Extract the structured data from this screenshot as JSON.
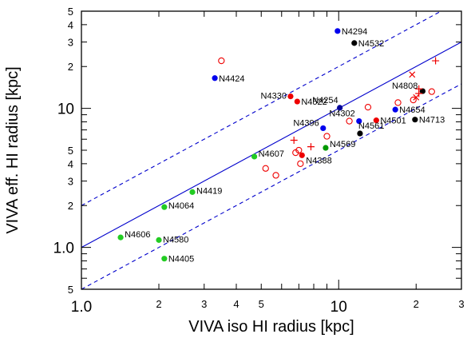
{
  "chart_data": {
    "type": "scatter",
    "xscale": "log",
    "yscale": "log",
    "xlim": [
      1.0,
      30.0
    ],
    "ylim": [
      0.5,
      50.0
    ],
    "xlabel": "VIVA iso HI radius [kpc]",
    "ylabel": "VIVA eff. HI radius [kpc]",
    "grid": false,
    "x_ticklabels": [
      {
        "v": 1.0,
        "t": "1.0",
        "major": true
      },
      {
        "v": 2,
        "t": "2",
        "major": false
      },
      {
        "v": 3,
        "t": "3",
        "major": false
      },
      {
        "v": 4,
        "t": "4",
        "major": false
      },
      {
        "v": 5,
        "t": "5",
        "major": false
      },
      {
        "v": 10,
        "t": "10",
        "major": true
      },
      {
        "v": 20,
        "t": "2",
        "major": false
      },
      {
        "v": 30,
        "t": "3",
        "major": false
      }
    ],
    "y_ticklabels": [
      {
        "v": 0.5,
        "t": "5"
      },
      {
        "v": 1.0,
        "t": "1.0"
      },
      {
        "v": 2,
        "t": "2"
      },
      {
        "v": 3,
        "t": "3"
      },
      {
        "v": 4,
        "t": "4"
      },
      {
        "v": 5,
        "t": "5"
      },
      {
        "v": 10,
        "t": "10"
      },
      {
        "v": 20,
        "t": "2"
      },
      {
        "v": 30,
        "t": "3"
      },
      {
        "v": 40,
        "t": "4"
      },
      {
        "v": 50,
        "t": "5"
      }
    ],
    "lines": [
      {
        "kind": "solid",
        "factor": 1.0,
        "color": "#0000cc"
      },
      {
        "kind": "dashed",
        "factor": 2.0,
        "color": "#0000cc"
      },
      {
        "kind": "dashed",
        "factor": 0.5,
        "color": "#0000cc"
      }
    ],
    "points": [
      {
        "name": "N4294",
        "x": 9.9,
        "y": 36.0,
        "marker": "filled",
        "color": "#0000ee"
      },
      {
        "name": "N4532",
        "x": 11.5,
        "y": 29.5,
        "marker": "filled",
        "color": "#000000"
      },
      {
        "name": "N4424",
        "x": 3.3,
        "y": 16.5,
        "marker": "filled",
        "color": "#0000ee"
      },
      {
        "name": "N4330",
        "x": 6.5,
        "y": 12.2,
        "marker": "filled",
        "color": "#ee0000"
      },
      {
        "name": "N4522",
        "x": 6.9,
        "y": 11.2,
        "marker": "filled",
        "color": "#ee0000"
      },
      {
        "name": "N4808",
        "x": 21.2,
        "y": 13.3,
        "marker": "filled",
        "color": "#000000"
      },
      {
        "name": "N4254",
        "x": 10.1,
        "y": 10.1,
        "marker": "filled",
        "color": "#000099"
      },
      {
        "name": "N4654",
        "x": 16.6,
        "y": 9.8,
        "marker": "filled",
        "color": "#0000ee"
      },
      {
        "name": "N4302",
        "x": 12.0,
        "y": 8.1,
        "marker": "filled",
        "color": "#0000ee"
      },
      {
        "name": "N4501",
        "x": 14.0,
        "y": 8.2,
        "marker": "filled",
        "color": "#ee0000"
      },
      {
        "name": "N4713",
        "x": 19.8,
        "y": 8.3,
        "marker": "filled",
        "color": "#000000"
      },
      {
        "name": "N4396",
        "x": 8.7,
        "y": 7.2,
        "marker": "filled",
        "color": "#0000ee"
      },
      {
        "name": "N4561",
        "x": 12.1,
        "y": 6.6,
        "marker": "filled",
        "color": "#000000"
      },
      {
        "name": "N4569",
        "x": 8.9,
        "y": 5.2,
        "marker": "filled",
        "color": "#009900"
      },
      {
        "name": "N4388",
        "x": 7.2,
        "y": 4.6,
        "marker": "filled",
        "color": "#ee0000"
      },
      {
        "name": "N4607",
        "x": 4.7,
        "y": 4.5,
        "marker": "filled",
        "color": "#22cc22"
      },
      {
        "name": "N4419",
        "x": 2.7,
        "y": 2.5,
        "marker": "filled",
        "color": "#22cc22"
      },
      {
        "name": "N4064",
        "x": 2.1,
        "y": 1.95,
        "marker": "filled",
        "color": "#22cc22"
      },
      {
        "name": "N4606",
        "x": 1.42,
        "y": 1.18,
        "marker": "filled",
        "color": "#22cc22"
      },
      {
        "name": "N4580",
        "x": 2.0,
        "y": 1.13,
        "marker": "filled",
        "color": "#22cc22"
      },
      {
        "name": "N4405",
        "x": 2.1,
        "y": 0.83,
        "marker": "filled",
        "color": "#22cc22"
      },
      {
        "name": "",
        "x": 3.5,
        "y": 22.0,
        "marker": "open",
        "color": "#ee0000"
      },
      {
        "name": "",
        "x": 5.2,
        "y": 3.7,
        "marker": "open",
        "color": "#ee0000"
      },
      {
        "name": "",
        "x": 5.7,
        "y": 3.3,
        "marker": "open",
        "color": "#ee0000"
      },
      {
        "name": "",
        "x": 6.8,
        "y": 4.8,
        "marker": "open",
        "color": "#ee0000"
      },
      {
        "name": "",
        "x": 7.0,
        "y": 5.0,
        "marker": "open",
        "color": "#ee0000"
      },
      {
        "name": "",
        "x": 7.1,
        "y": 4.0,
        "marker": "open",
        "color": "#ee0000"
      },
      {
        "name": "",
        "x": 9.0,
        "y": 6.3,
        "marker": "open",
        "color": "#ee0000"
      },
      {
        "name": "",
        "x": 11.0,
        "y": 8.1,
        "marker": "open",
        "color": "#ee0000"
      },
      {
        "name": "",
        "x": 13.0,
        "y": 10.2,
        "marker": "open",
        "color": "#ee0000"
      },
      {
        "name": "",
        "x": 17.0,
        "y": 11.0,
        "marker": "open",
        "color": "#ee0000"
      },
      {
        "name": "",
        "x": 19.5,
        "y": 11.5,
        "marker": "open",
        "color": "#ee0000"
      },
      {
        "name": "",
        "x": 23.0,
        "y": 13.2,
        "marker": "open",
        "color": "#ee0000"
      },
      {
        "name": "",
        "x": 6.7,
        "y": 5.9,
        "marker": "plus",
        "color": "#ee0000"
      },
      {
        "name": "",
        "x": 7.8,
        "y": 5.3,
        "marker": "plus",
        "color": "#ee0000"
      },
      {
        "name": "",
        "x": 20.5,
        "y": 13.8,
        "marker": "plus",
        "color": "#ee0000"
      },
      {
        "name": "",
        "x": 20.5,
        "y": 12.8,
        "marker": "plus",
        "color": "#ee0000"
      },
      {
        "name": "",
        "x": 23.8,
        "y": 22.0,
        "marker": "plus",
        "color": "#ee0000"
      },
      {
        "name": "",
        "x": 19.3,
        "y": 17.5,
        "marker": "cross",
        "color": "#ee0000"
      },
      {
        "name": "",
        "x": 20.0,
        "y": 12.0,
        "marker": "cross",
        "color": "#ee0000"
      }
    ]
  }
}
